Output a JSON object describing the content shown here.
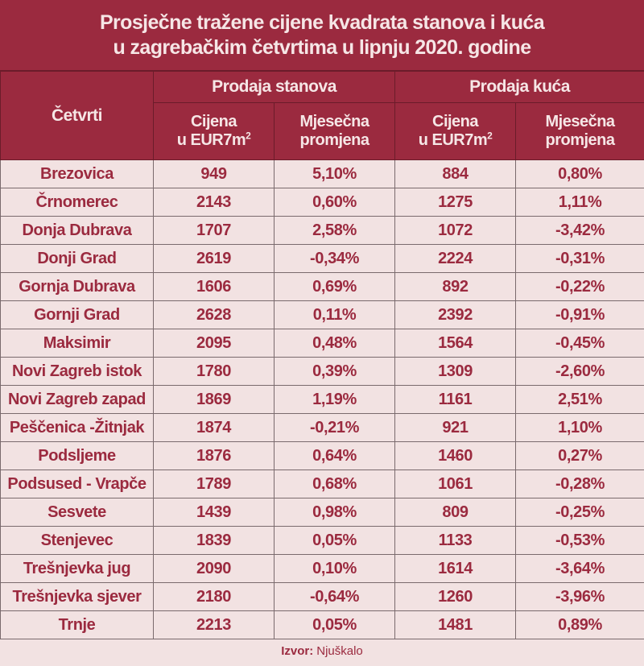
{
  "title": {
    "line1": "Prosječne tražene cijene kvadrata stanova i kuća",
    "line2": "u zagrebačkim četvrtima u lipnju 2020. godine"
  },
  "header": {
    "district": "Četvrti",
    "group_apartments": "Prodaja stanova",
    "group_houses": "Prodaja kuća",
    "price_line1": "Cijena",
    "price_line2": "u EUR7m",
    "price_sup": "2",
    "change_line1": "Mjesečna",
    "change_line2": "promjena"
  },
  "rows": [
    {
      "district": "Brezovica",
      "apt_price": "949",
      "apt_change": "5,10%",
      "house_price": "884",
      "house_change": "0,80%"
    },
    {
      "district": "Črnomerec",
      "apt_price": "2143",
      "apt_change": "0,60%",
      "house_price": "1275",
      "house_change": "1,11%"
    },
    {
      "district": "Donja Dubrava",
      "apt_price": "1707",
      "apt_change": "2,58%",
      "house_price": "1072",
      "house_change": "-3,42%"
    },
    {
      "district": "Donji Grad",
      "apt_price": "2619",
      "apt_change": "-0,34%",
      "house_price": "2224",
      "house_change": "-0,31%"
    },
    {
      "district": "Gornja Dubrava",
      "apt_price": "1606",
      "apt_change": "0,69%",
      "house_price": "892",
      "house_change": "-0,22%"
    },
    {
      "district": "Gornji Grad",
      "apt_price": "2628",
      "apt_change": "0,11%",
      "house_price": "2392",
      "house_change": "-0,91%"
    },
    {
      "district": "Maksimir",
      "apt_price": "2095",
      "apt_change": "0,48%",
      "house_price": "1564",
      "house_change": "-0,45%"
    },
    {
      "district": "Novi Zagreb istok",
      "apt_price": "1780",
      "apt_change": "0,39%",
      "house_price": "1309",
      "house_change": "-2,60%"
    },
    {
      "district": "Novi Zagreb zapad",
      "apt_price": "1869",
      "apt_change": "1,19%",
      "house_price": "1161",
      "house_change": "2,51%"
    },
    {
      "district": "Peščenica -Žitnjak",
      "apt_price": "1874",
      "apt_change": "-0,21%",
      "house_price": "921",
      "house_change": "1,10%"
    },
    {
      "district": "Podsljeme",
      "apt_price": "1876",
      "apt_change": "0,64%",
      "house_price": "1460",
      "house_change": "0,27%"
    },
    {
      "district": "Podsused - Vrapče",
      "apt_price": "1789",
      "apt_change": "0,68%",
      "house_price": "1061",
      "house_change": "-0,28%"
    },
    {
      "district": "Sesvete",
      "apt_price": "1439",
      "apt_change": "0,98%",
      "house_price": "809",
      "house_change": "-0,25%"
    },
    {
      "district": "Stenjevec",
      "apt_price": "1839",
      "apt_change": "0,05%",
      "house_price": "1133",
      "house_change": "-0,53%"
    },
    {
      "district": "Trešnjevka jug",
      "apt_price": "2090",
      "apt_change": "0,10%",
      "house_price": "1614",
      "house_change": "-3,64%"
    },
    {
      "district": "Trešnjevka sjever",
      "apt_price": "2180",
      "apt_change": "-0,64%",
      "house_price": "1260",
      "house_change": "-3,96%"
    },
    {
      "district": "Trnje",
      "apt_price": "2213",
      "apt_change": "0,05%",
      "house_price": "1481",
      "house_change": "0,89%"
    }
  ],
  "footer": {
    "source_label": "Izvor:",
    "source_value": "Njuškalo"
  },
  "colors": {
    "header_bg": "#9b2a3f",
    "header_text": "#f6e6e6",
    "body_bg": "#f2e2e2",
    "body_text": "#9b2a3f"
  }
}
